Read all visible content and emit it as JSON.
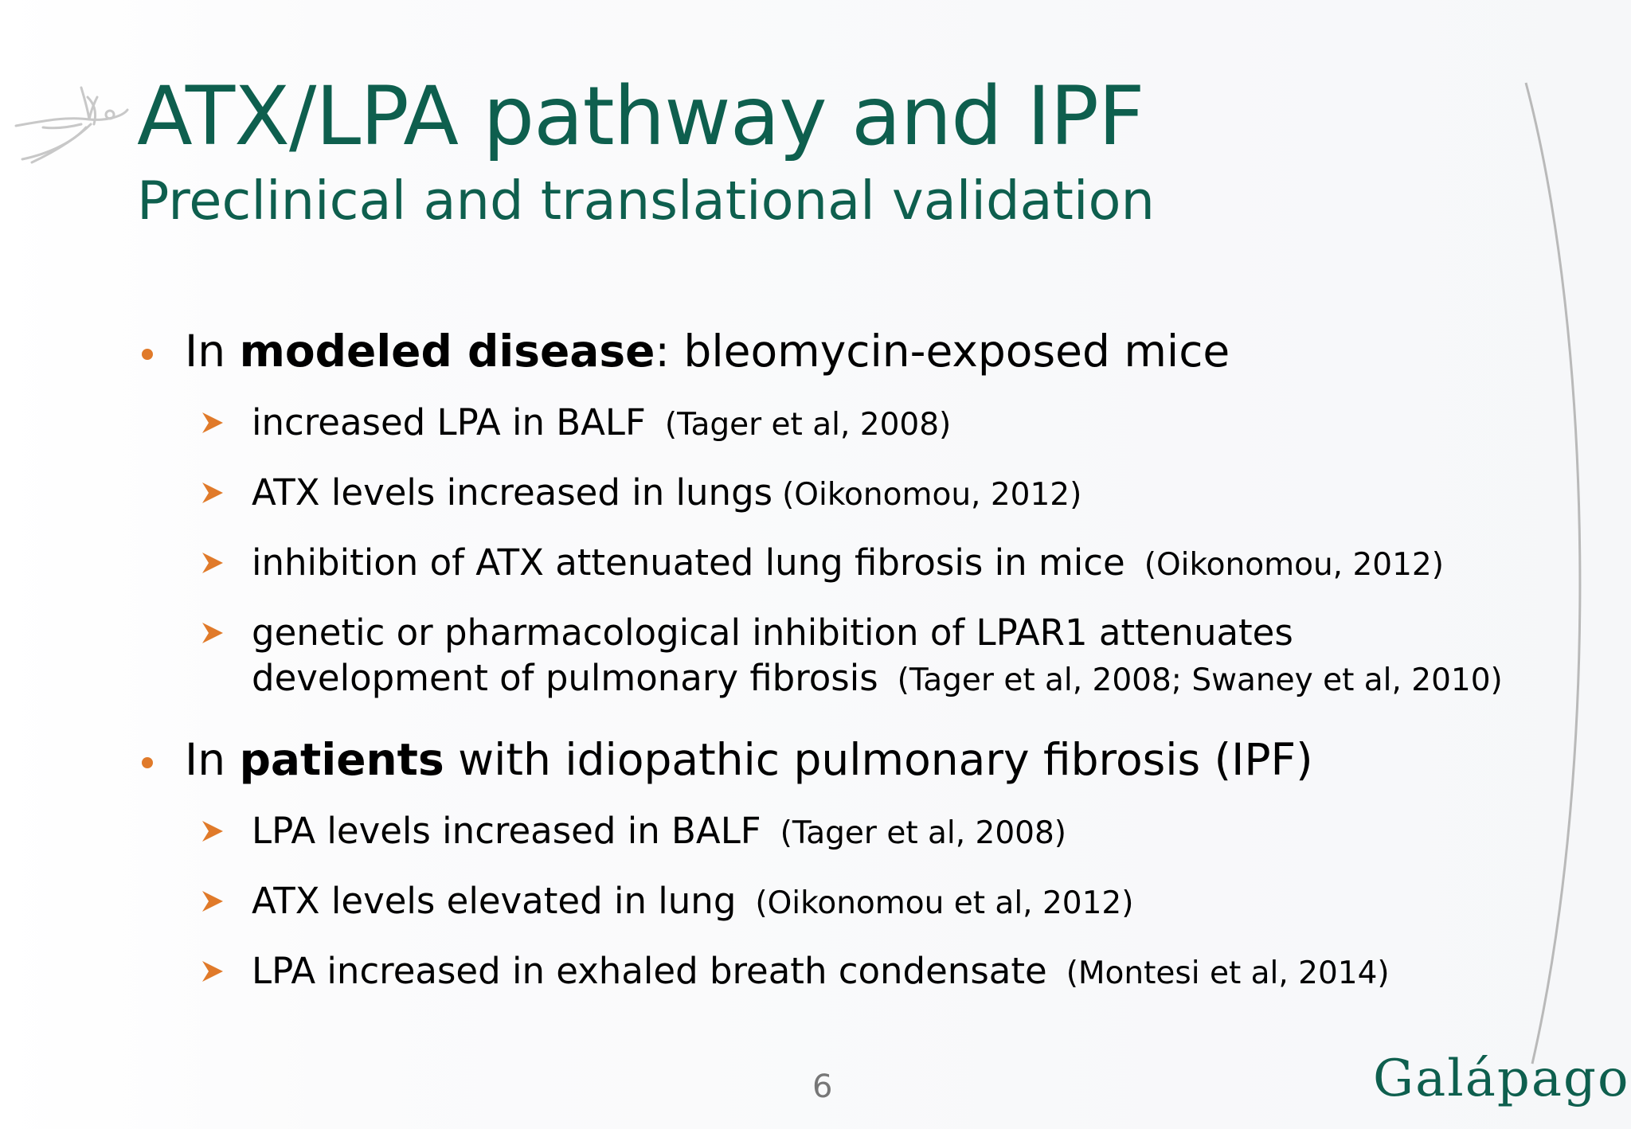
{
  "slide": {
    "title": "ATX/LPA pathway and IPF",
    "subtitle": "Preclinical and translational validation",
    "page_number": "6",
    "logo_text": "Galápagos",
    "colors": {
      "title": "#0e5f4e",
      "bullet": "#e07a2a",
      "arrow": "#e07a2a",
      "body_text": "#000000"
    },
    "icons": {
      "bullet": "orange-dot-icon",
      "sub_bullet": "orange-arrowhead-icon",
      "decoration": "bird-icon"
    }
  },
  "bullets": [
    {
      "prefix": "In ",
      "bold": "modeled disease",
      "suffix": ": bleomycin-exposed mice",
      "items": [
        {
          "text": "increased LPA in BALF",
          "cite": "(Tager et al, 2008)"
        },
        {
          "text": "ATX levels increased in lungs",
          "cite": "(Oikonomou, 2012)"
        },
        {
          "text": "inhibition of ATX attenuated lung fibrosis in mice",
          "cite": "(Oikonomou, 2012)"
        },
        {
          "text": "genetic or pharmacological inhibition of LPAR1 attenuates development of pulmonary fibrosis",
          "cite": "(Tager et al, 2008; Swaney et al, 2010)"
        }
      ]
    },
    {
      "prefix": "In ",
      "bold": "patients",
      "suffix": " with idiopathic pulmonary fibrosis (IPF)",
      "items": [
        {
          "text": "LPA levels increased in BALF",
          "cite": "(Tager et al, 2008)"
        },
        {
          "text": "ATX levels elevated in lung",
          "cite": "(Oikonomou et al, 2012)"
        },
        {
          "text": "LPA increased in exhaled breath condensate",
          "cite": "(Montesi et al, 2014)"
        }
      ]
    }
  ]
}
